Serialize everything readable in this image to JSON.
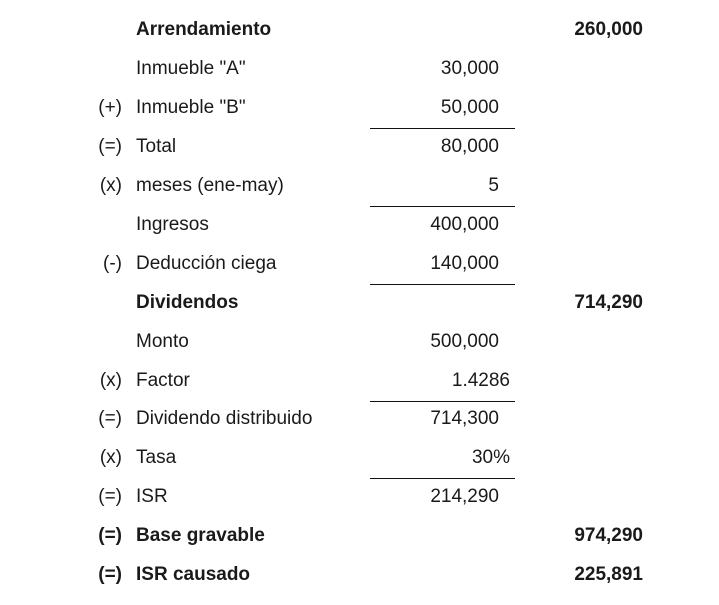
{
  "rows": [
    {
      "op": "",
      "label": "Arrendamiento",
      "mid": "",
      "total": "260,000"
    },
    {
      "op": "",
      "label": "Inmueble \"A\"",
      "mid": "30,000",
      "total": ""
    },
    {
      "op": "(+)",
      "label": "Inmueble \"B\"",
      "mid": "50,000",
      "total": ""
    },
    {
      "op": "(=)",
      "label": "Total",
      "mid": "80,000",
      "total": ""
    },
    {
      "op": "(x)",
      "label": "meses (ene-may)",
      "mid": "5",
      "total": ""
    },
    {
      "op": "",
      "label": "Ingresos",
      "mid": "400,000",
      "total": ""
    },
    {
      "op": "(-)",
      "label": "Deducción ciega",
      "mid": "140,000",
      "total": ""
    },
    {
      "op": "",
      "label": "Dividendos",
      "mid": "",
      "total": "714,290"
    },
    {
      "op": "",
      "label": "Monto",
      "mid": "500,000",
      "total": ""
    },
    {
      "op": "(x)",
      "label": "Factor",
      "mid": "1.4286",
      "total": ""
    },
    {
      "op": "(=)",
      "label": "Dividendo distribuido",
      "mid": "714,300",
      "total": ""
    },
    {
      "op": "(x)",
      "label": "Tasa",
      "mid": "30%",
      "total": ""
    },
    {
      "op": "(=)",
      "label": "ISR",
      "mid": "214,290",
      "total": ""
    },
    {
      "op": "(=)",
      "label": "Base gravable",
      "mid": "",
      "total": "974,290"
    },
    {
      "op": "(=)",
      "label": "ISR causado",
      "mid": "",
      "total": "225,891"
    }
  ]
}
